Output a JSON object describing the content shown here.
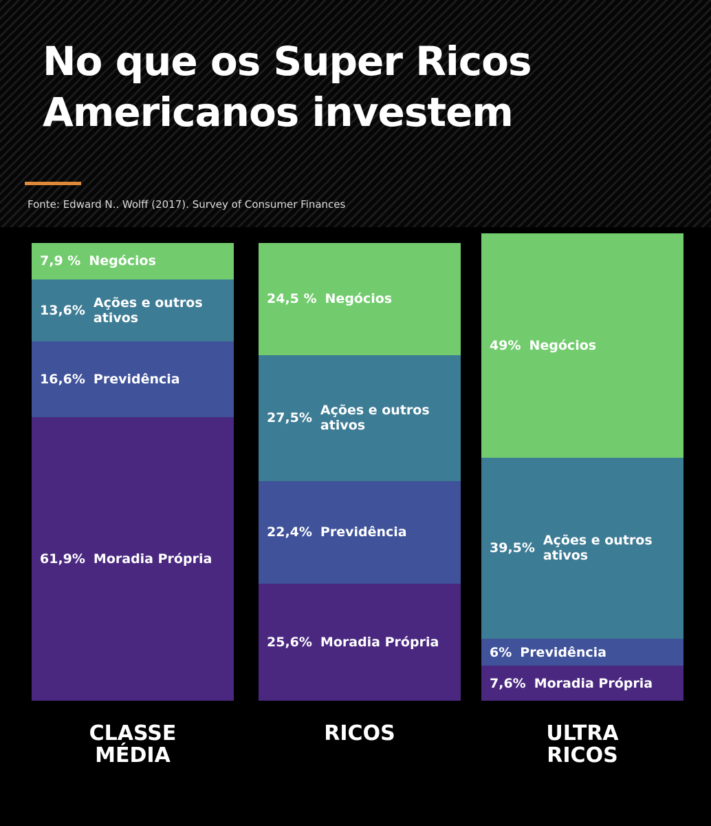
{
  "chart_data": {
    "type": "stacked_bar",
    "title": "No que os Super Ricos Americanos investem",
    "source": "Fonte: Edward N.. Wolff (2017). Survey of Consumer Finances",
    "categories": [
      "CLASSE MÉDIA",
      "RICOS",
      "ULTRA RICOS"
    ],
    "ylim": [
      0,
      100
    ],
    "series": [
      {
        "name": "Negócios",
        "color": "#72cc6e",
        "values": [
          7.9,
          24.5,
          49
        ],
        "value_labels": [
          "7,9 %",
          "24,5 %",
          "49%"
        ]
      },
      {
        "name": "Ações e outros ativos",
        "color": "#3d7c95",
        "values": [
          13.6,
          27.5,
          39.5
        ],
        "value_labels": [
          "13,6%",
          "27,5%",
          "39,5%"
        ]
      },
      {
        "name": "Previdência",
        "color": "#3f529a",
        "values": [
          16.6,
          22.4,
          6
        ],
        "value_labels": [
          "16,6%",
          "22,4%",
          "6%"
        ]
      },
      {
        "name": "Moradia Própria",
        "color": "#4a2880",
        "values": [
          61.9,
          25.6,
          7.6
        ],
        "value_labels": [
          "61,9%",
          "25,6%",
          "7,6%"
        ]
      }
    ]
  }
}
